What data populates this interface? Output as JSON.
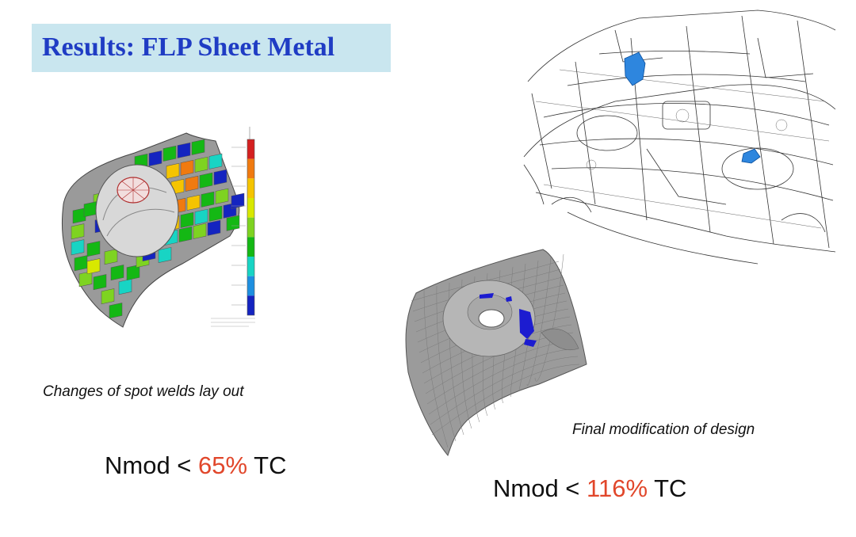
{
  "slide": {
    "title": "Results: FLP Sheet Metal"
  },
  "left_panel": {
    "caption": "Changes of spot welds lay out",
    "metric": {
      "prefix": "Nmod < ",
      "value": "65%",
      "suffix": " TC"
    },
    "legend_colors": [
      "#d42020",
      "#f07a10",
      "#f5c400",
      "#d8e800",
      "#7ed321",
      "#14b814",
      "#18d4c4",
      "#1e8fe0",
      "#1424c0"
    ]
  },
  "right_panel": {
    "caption": "Final modification of design",
    "metric": {
      "prefix": "Nmod < ",
      "value": "116%",
      "suffix": " TC"
    }
  },
  "colors": {
    "title_bg": "#c9e6ef",
    "title_text": "#1f3cc4",
    "highlight": "#e1472b"
  }
}
